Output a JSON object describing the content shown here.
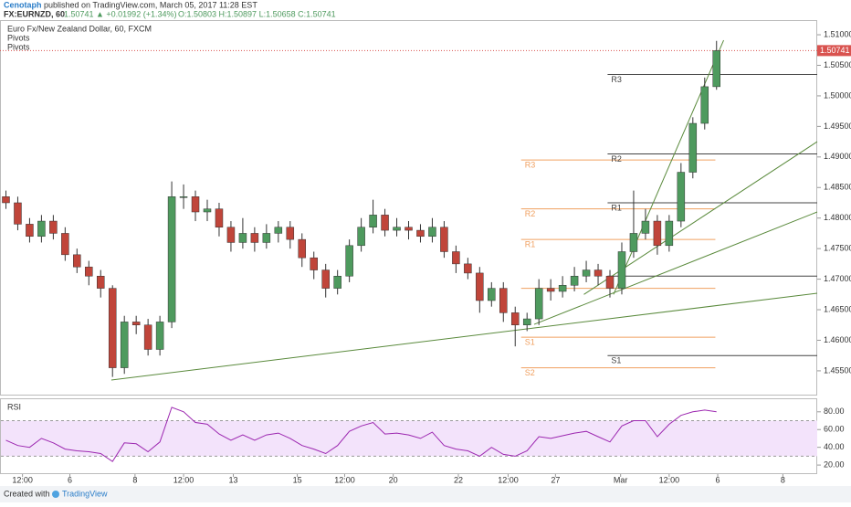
{
  "header": {
    "author": "Cenotaph",
    "published": "published on TradingView.com, March 05, 2017 11:28 EST",
    "symbol": "FX:EURNZD, 60",
    "last": "1.50741",
    "change": "▲ +0.01992 (+1.34%)",
    "ohlc": "O:1.50803 H:1.50897 L:1.50658 C:1.50741"
  },
  "footer": {
    "created": "Created with",
    "brand": "TradingView"
  },
  "chart_data": [
    {
      "type": "candlestick",
      "title": "Euro Fx/New Zealand Dollar, 60, FXCM",
      "studies": [
        "Pivots",
        "Pivots"
      ],
      "up_color": "#4e9a5e",
      "down_color": "#c0453a",
      "wick_color": "#333333",
      "xlim": [
        -0.5,
        68.5
      ],
      "xticks": [
        {
          "value": 1.4,
          "label": "12:00"
        },
        {
          "value": 5.4,
          "label": "6"
        },
        {
          "value": 10.9,
          "label": "8"
        },
        {
          "value": 15.0,
          "label": "12:00"
        },
        {
          "value": 19.2,
          "label": "13"
        },
        {
          "value": 24.6,
          "label": "15"
        },
        {
          "value": 28.6,
          "label": "12:00"
        },
        {
          "value": 32.7,
          "label": "20"
        },
        {
          "value": 38.2,
          "label": "22"
        },
        {
          "value": 42.4,
          "label": "12:00"
        },
        {
          "value": 46.4,
          "label": "27"
        },
        {
          "value": 51.9,
          "label": "Mar"
        },
        {
          "value": 56.0,
          "label": "12:00"
        },
        {
          "value": 60.1,
          "label": "6"
        },
        {
          "value": 65.6,
          "label": "8"
        }
      ],
      "ylim": [
        1.4511,
        1.5124
      ],
      "yticks": [
        {
          "value": 1.455,
          "label": "1.45500"
        },
        {
          "value": 1.46,
          "label": "1.46000"
        },
        {
          "value": 1.465,
          "label": "1.46500"
        },
        {
          "value": 1.47,
          "label": "1.47000"
        },
        {
          "value": 1.475,
          "label": "1.47500"
        },
        {
          "value": 1.48,
          "label": "1.48000"
        },
        {
          "value": 1.485,
          "label": "1.48500"
        },
        {
          "value": 1.49,
          "label": "1.49000"
        },
        {
          "value": 1.495,
          "label": "1.49500"
        },
        {
          "value": 1.5,
          "label": "1.50000"
        },
        {
          "value": 1.505,
          "label": "1.50500"
        },
        {
          "value": 1.51,
          "label": "1.51000"
        }
      ],
      "last_price": {
        "value": 1.50741,
        "label": "1.50741",
        "color": "#d9534f"
      },
      "open": [
        1.4835,
        1.4825,
        1.479,
        1.477,
        1.4795,
        1.4775,
        1.474,
        1.472,
        1.4705,
        1.4685,
        1.4555,
        1.463,
        1.4625,
        1.4585,
        1.463,
        1.4835,
        1.4835,
        1.481,
        1.4815,
        1.4785,
        1.476,
        1.4775,
        1.476,
        1.4775,
        1.4785,
        1.4765,
        1.4735,
        1.4715,
        1.4685,
        1.4705,
        1.4755,
        1.4785,
        1.4805,
        1.478,
        1.4785,
        1.478,
        1.477,
        1.4785,
        1.4745,
        1.4725,
        1.471,
        1.4665,
        1.4685,
        1.4645,
        1.4625,
        1.4635,
        1.4685,
        1.468,
        1.469,
        1.4705,
        1.4715,
        1.4705,
        1.4685,
        1.4745,
        1.4775,
        1.4795,
        1.4755,
        1.4795,
        1.4875,
        1.4955,
        1.5015
      ],
      "high": [
        1.4845,
        1.4835,
        1.48,
        1.4805,
        1.4805,
        1.4785,
        1.475,
        1.473,
        1.4715,
        1.469,
        1.464,
        1.464,
        1.4635,
        1.464,
        1.486,
        1.4855,
        1.4845,
        1.483,
        1.4825,
        1.4795,
        1.48,
        1.4785,
        1.479,
        1.4795,
        1.4795,
        1.4775,
        1.4745,
        1.4725,
        1.4715,
        1.4765,
        1.48,
        1.483,
        1.4815,
        1.48,
        1.4795,
        1.479,
        1.48,
        1.4795,
        1.4755,
        1.4735,
        1.472,
        1.4695,
        1.4695,
        1.4655,
        1.4645,
        1.47,
        1.47,
        1.4705,
        1.472,
        1.473,
        1.4725,
        1.4715,
        1.476,
        1.4845,
        1.4815,
        1.4805,
        1.4805,
        1.489,
        1.4965,
        1.503,
        1.509
      ],
      "low": [
        1.4815,
        1.478,
        1.476,
        1.476,
        1.4765,
        1.473,
        1.471,
        1.469,
        1.467,
        1.454,
        1.4545,
        1.461,
        1.4575,
        1.4575,
        1.462,
        1.4815,
        1.4795,
        1.4795,
        1.477,
        1.4745,
        1.475,
        1.4745,
        1.475,
        1.476,
        1.475,
        1.472,
        1.47,
        1.467,
        1.4675,
        1.4695,
        1.4745,
        1.4775,
        1.477,
        1.477,
        1.4765,
        1.476,
        1.476,
        1.4735,
        1.471,
        1.47,
        1.4645,
        1.4655,
        1.463,
        1.459,
        1.4615,
        1.4625,
        1.4665,
        1.467,
        1.468,
        1.4695,
        1.469,
        1.467,
        1.4675,
        1.4735,
        1.4765,
        1.474,
        1.4745,
        1.4785,
        1.4865,
        1.4945,
        1.501
      ],
      "close": [
        1.4825,
        1.479,
        1.477,
        1.4795,
        1.4775,
        1.474,
        1.472,
        1.4705,
        1.4685,
        1.4555,
        1.463,
        1.4625,
        1.4585,
        1.463,
        1.4835,
        1.4835,
        1.481,
        1.4815,
        1.4785,
        1.476,
        1.4775,
        1.476,
        1.4775,
        1.4785,
        1.4765,
        1.4735,
        1.4715,
        1.4685,
        1.4705,
        1.4755,
        1.4785,
        1.4805,
        1.478,
        1.4785,
        1.478,
        1.477,
        1.4785,
        1.4745,
        1.4725,
        1.471,
        1.4665,
        1.4685,
        1.4645,
        1.4625,
        1.4635,
        1.4685,
        1.468,
        1.469,
        1.4705,
        1.4715,
        1.4705,
        1.4685,
        1.4745,
        1.4775,
        1.4795,
        1.4755,
        1.4795,
        1.4875,
        1.4955,
        1.5015,
        1.5074
      ],
      "pivots": [
        {
          "color": "#f0a060",
          "x": [
            43.5,
            59.9
          ],
          "levels": [
            {
              "label": "R3",
              "value": 1.4895
            },
            {
              "label": "R2",
              "value": 1.4815
            },
            {
              "label": "R1",
              "value": 1.4765
            },
            {
              "label": null,
              "value": 1.4685
            },
            {
              "label": "S1",
              "value": 1.4605
            },
            {
              "label": "S2",
              "value": 1.4555
            }
          ]
        },
        {
          "color": "#444444",
          "x": [
            50.8,
            68.5
          ],
          "levels": [
            {
              "label": "R3",
              "value": 1.5035
            },
            {
              "label": "R2",
              "value": 1.4905
            },
            {
              "label": "R1",
              "value": 1.4825
            },
            {
              "label": null,
              "value": 1.4705
            },
            {
              "label": "S1",
              "value": 1.4575
            }
          ]
        }
      ],
      "trendline_color": "#5a8a3c",
      "trendlines": [
        {
          "x": [
            8.9,
            68.5
          ],
          "y": [
            1.4535,
            1.4677
          ]
        },
        {
          "x": [
            44.6,
            68.5
          ],
          "y": [
            1.4626,
            1.481
          ]
        },
        {
          "x": [
            48.8,
            68.5
          ],
          "y": [
            1.4675,
            1.4925
          ]
        },
        {
          "x": [
            51.3,
            60.6
          ],
          "y": [
            1.4675,
            1.5091
          ]
        }
      ]
    },
    {
      "type": "line",
      "title": "RSI",
      "color": "#9c27b0",
      "band": [
        30,
        70
      ],
      "band_color": "#f3e3fb",
      "ylim": [
        9.8,
        94.2
      ],
      "yticks": [
        {
          "value": 20,
          "label": "20.00"
        },
        {
          "value": 40,
          "label": "40.00"
        },
        {
          "value": 60,
          "label": "60.00"
        },
        {
          "value": 80,
          "label": "80.00"
        }
      ],
      "values": [
        48,
        42,
        40,
        50,
        45,
        38,
        36,
        35,
        33,
        24,
        45,
        44,
        35,
        46,
        85,
        80,
        68,
        66,
        55,
        48,
        54,
        48,
        54,
        56,
        50,
        42,
        38,
        33,
        42,
        58,
        64,
        68,
        55,
        56,
        54,
        50,
        57,
        42,
        38,
        36,
        30,
        40,
        32,
        30,
        36,
        52,
        50,
        53,
        56,
        58,
        52,
        46,
        64,
        70,
        70,
        52,
        66,
        76,
        80,
        82,
        80
      ]
    }
  ]
}
